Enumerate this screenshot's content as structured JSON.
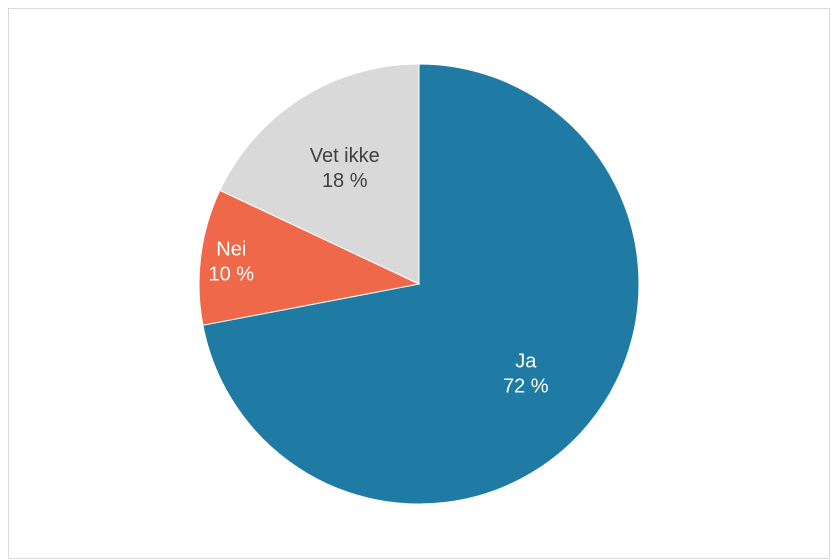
{
  "chart_data": {
    "type": "pie",
    "title": "",
    "slices": [
      {
        "label": "Ja",
        "value": 72,
        "value_label": "72 %",
        "color": "#1f7ba3",
        "text_color": "#ffffff"
      },
      {
        "label": "Nei",
        "value": 10,
        "value_label": "10 %",
        "color": "#f0684a",
        "text_color": "#ffffff"
      },
      {
        "label": "Vet ikke",
        "value": 18,
        "value_label": "18 %",
        "color": "#d9d9d9",
        "text_color": "#404040"
      }
    ],
    "start": "top",
    "direction": "clockwise",
    "legend": "none"
  }
}
